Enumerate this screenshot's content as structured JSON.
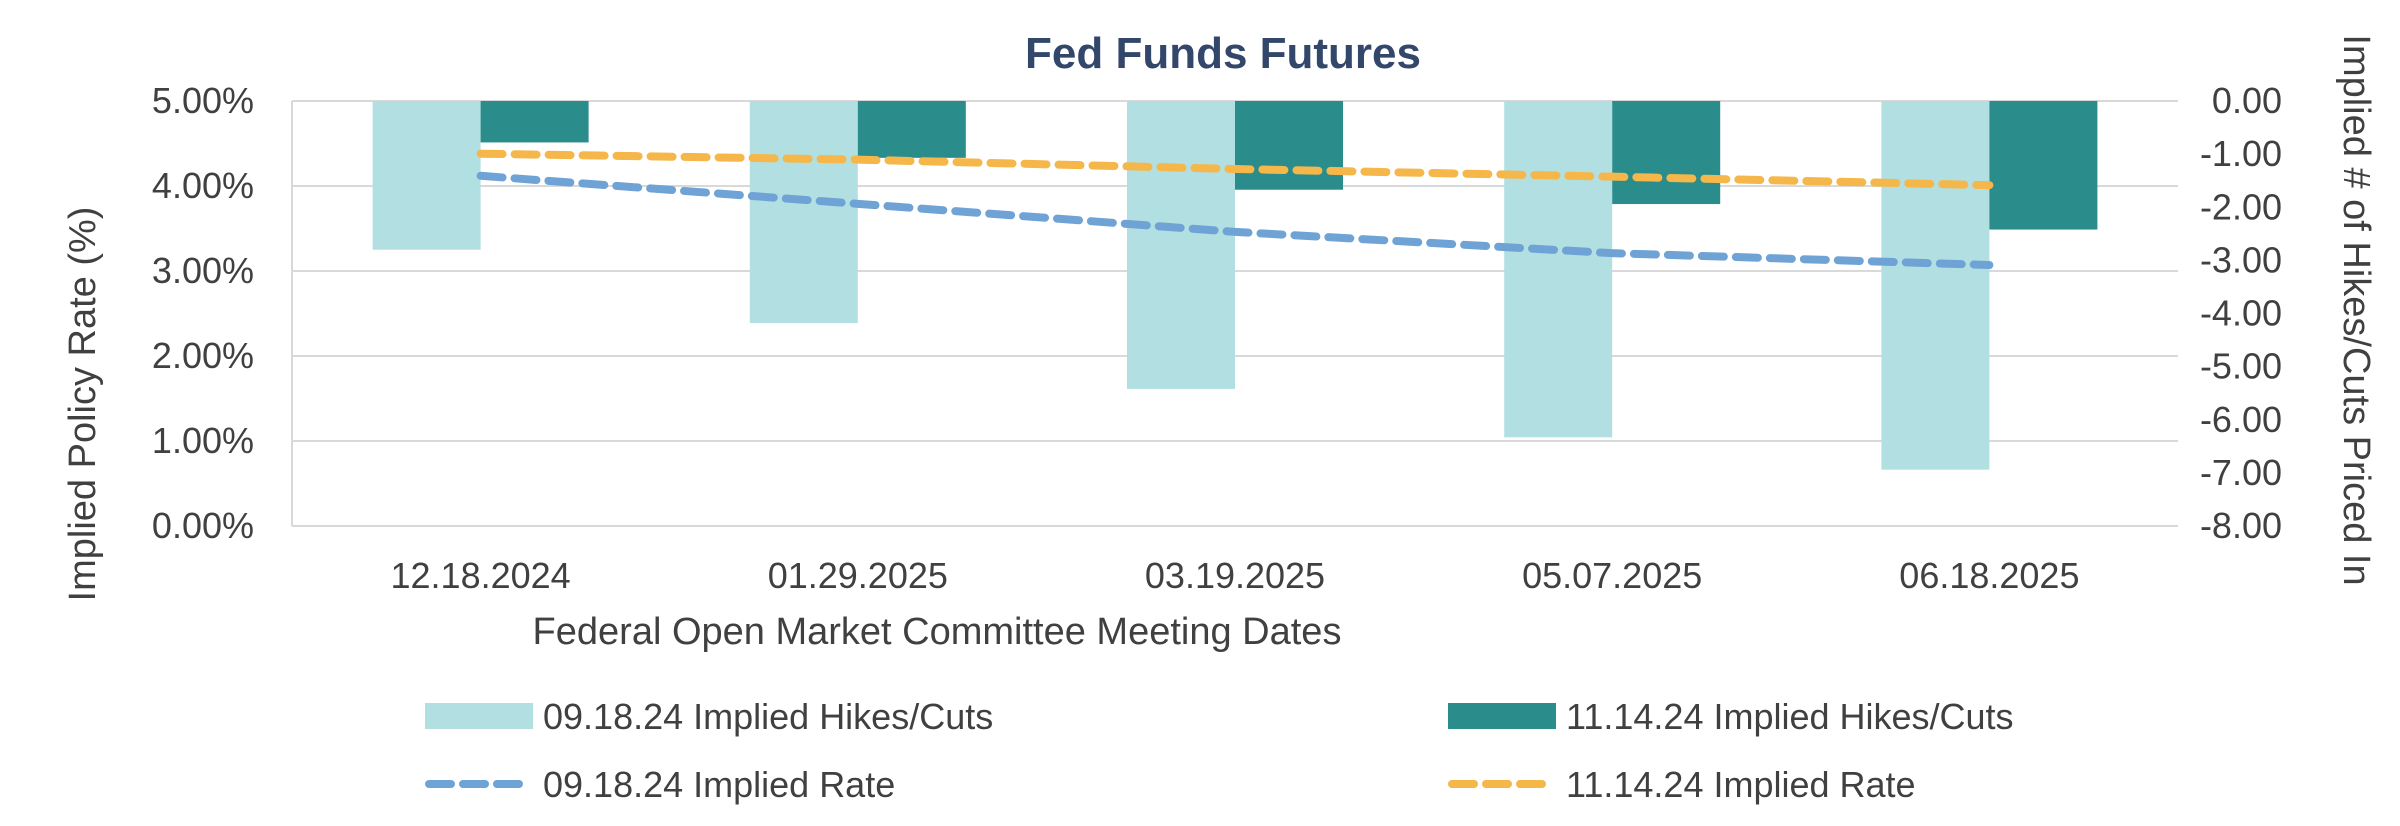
{
  "chart_data": {
    "type": "bar",
    "title": "Fed Funds Futures",
    "xlabel": "Federal Open Market Committee Meeting Dates",
    "ylabel": "Implied Policy Rate (%)",
    "y2label": "Implied # of Hikes/Cuts Priced In",
    "categories": [
      "12.18.2024",
      "01.29.2025",
      "03.19.2025",
      "05.07.2025",
      "06.18.2025"
    ],
    "ylim": [
      0,
      5
    ],
    "y2lim": [
      -8,
      0
    ],
    "yticks": [
      "0.00%",
      "1.00%",
      "2.00%",
      "3.00%",
      "4.00%",
      "5.00%"
    ],
    "y2ticks": [
      "-8.00",
      "-7.00",
      "-6.00",
      "-5.00",
      "-4.00",
      "-3.00",
      "-2.00",
      "-1.00",
      "0.00"
    ],
    "grid": true,
    "legend_position": "bottom",
    "series": [
      {
        "name": "09.18.24 Implied Hikes/Cuts",
        "type": "bar",
        "axis": "right",
        "color": "#b2e0e2",
        "values": [
          -2.8,
          -4.18,
          -5.42,
          -6.33,
          -6.94
        ]
      },
      {
        "name": "11.14.24 Implied Hikes/Cuts",
        "type": "bar",
        "axis": "right",
        "color": "#2a8c8b",
        "values": [
          -0.78,
          -1.07,
          -1.67,
          -1.94,
          -2.42
        ]
      },
      {
        "name": "09.18.24 Implied Rate",
        "type": "line",
        "axis": "left",
        "style": "dashed",
        "color": "#6fa3d6",
        "values": [
          4.12,
          3.79,
          3.46,
          3.21,
          3.07
        ]
      },
      {
        "name": "11.14.24 Implied Rate",
        "type": "line",
        "axis": "left",
        "style": "dashed",
        "color": "#f5b64a",
        "values": [
          4.38,
          4.31,
          4.2,
          4.11,
          4.01
        ]
      }
    ]
  }
}
